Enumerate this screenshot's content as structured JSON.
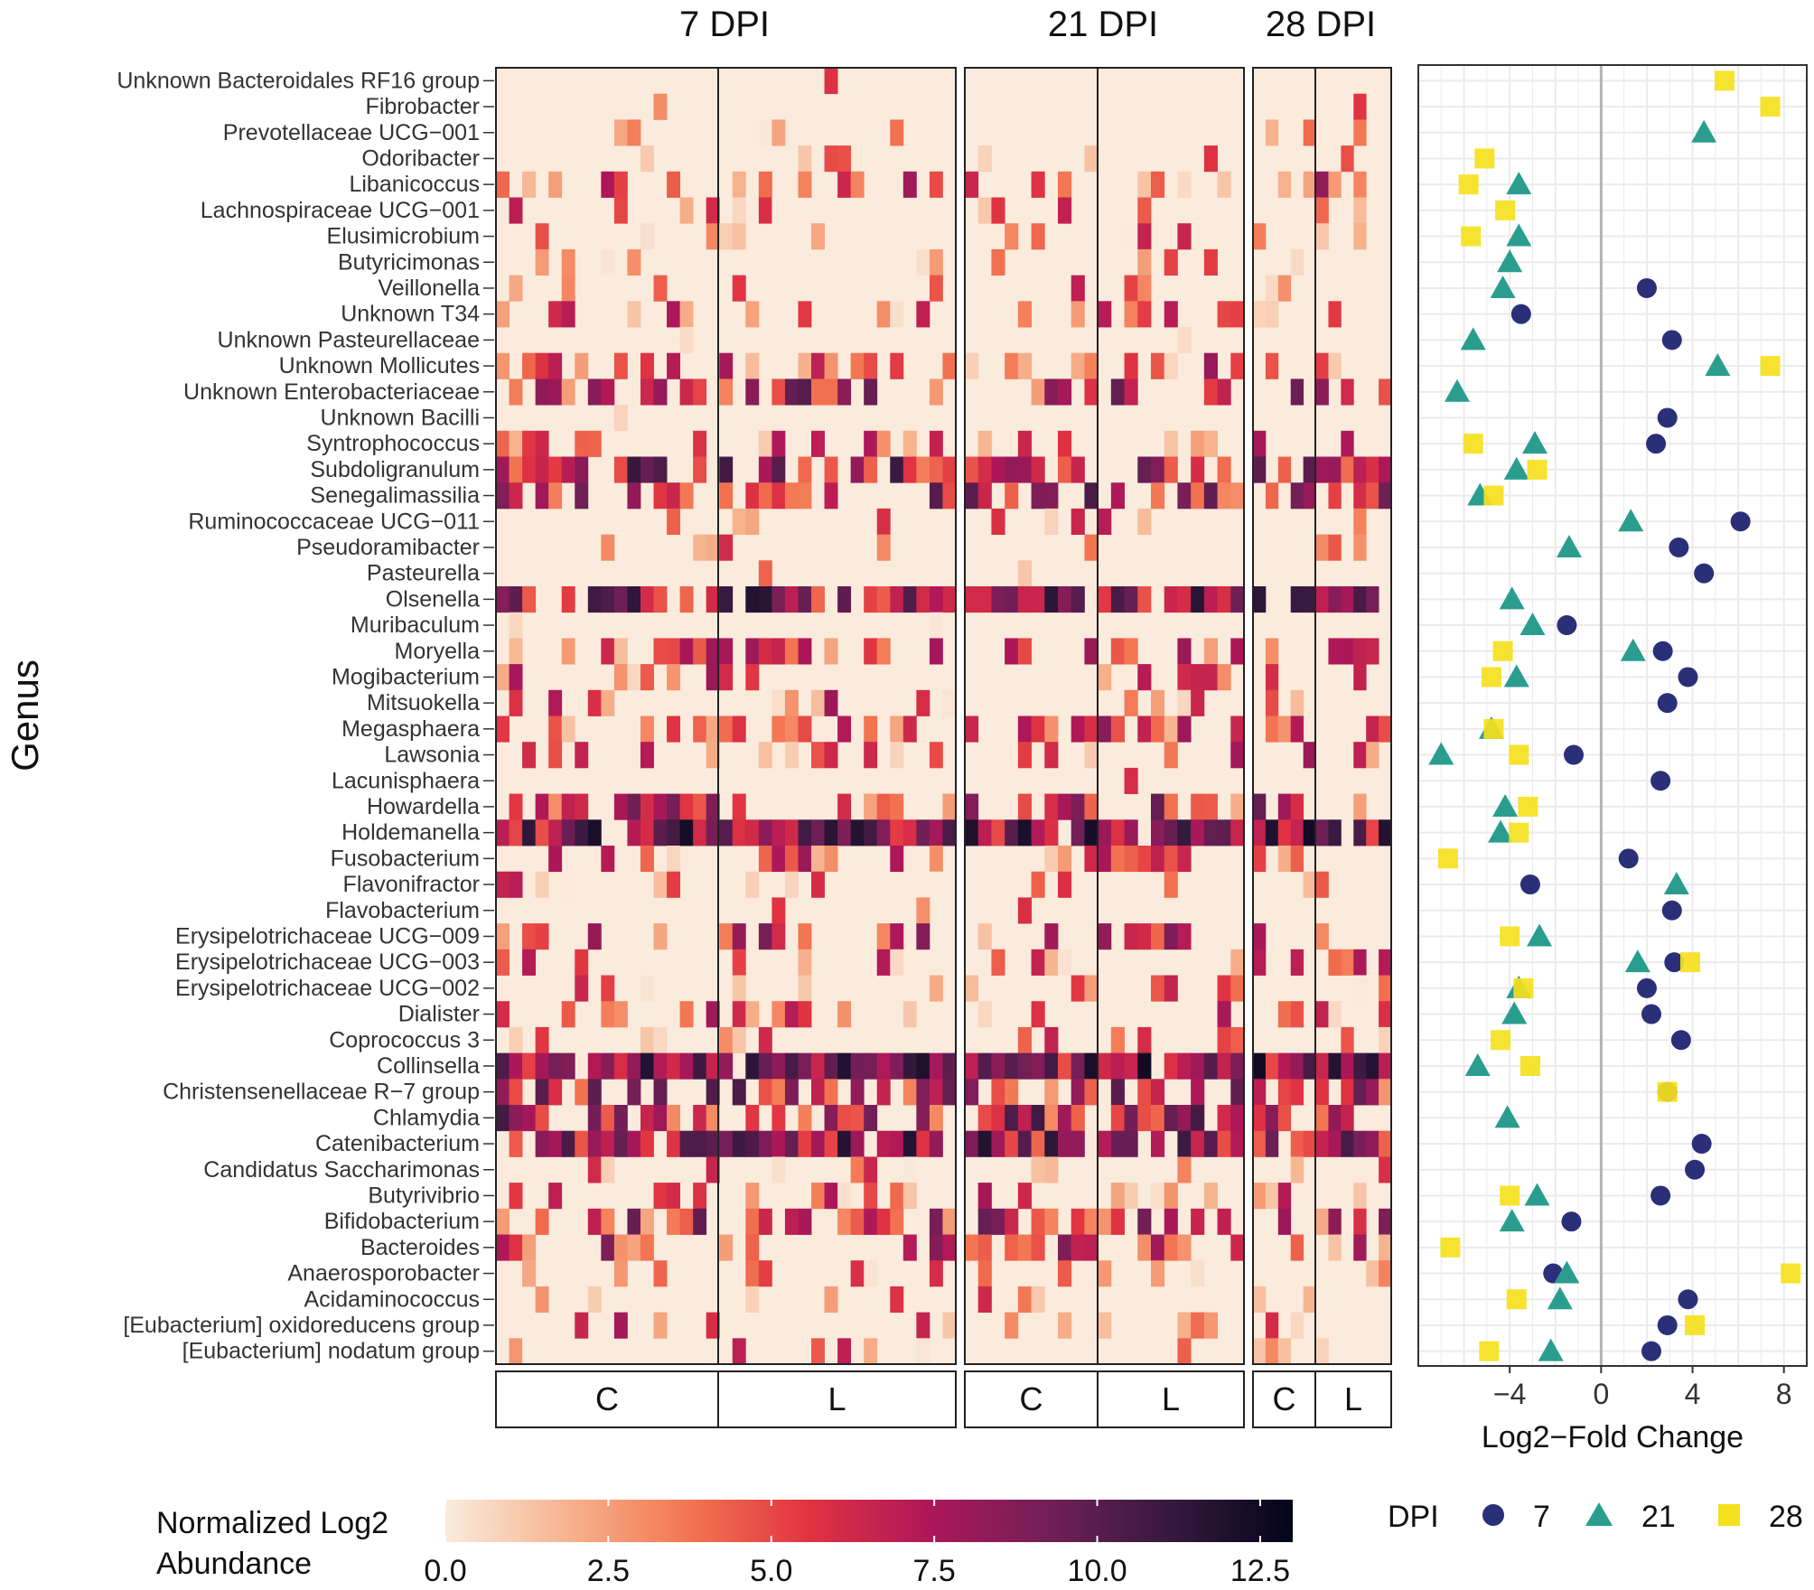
{
  "chart_data": {
    "type": "heatmap",
    "ylabel": "Genus",
    "genera": [
      "Unknown Bacteroidales RF16 group",
      "Fibrobacter",
      "Prevotellaceae UCG−001",
      "Odoribacter",
      "Libanicoccus",
      "Lachnospiraceae UCG−001",
      "Elusimicrobium",
      "Butyricimonas",
      "Veillonella",
      "Unknown T34",
      "Unknown Pasteurellaceae",
      "Unknown Mollicutes",
      "Unknown Enterobacteriaceae",
      "Unknown Bacilli",
      "Syntrophococcus",
      "Subdoligranulum",
      "Senegalimassilia",
      "Ruminococcaceae UCG−011",
      "Pseudoramibacter",
      "Pasteurella",
      "Olsenella",
      "Muribaculum",
      "Moryella",
      "Mogibacterium",
      "Mitsuokella",
      "Megasphaera",
      "Lawsonia",
      "Lacunisphaera",
      "Howardella",
      "Holdemanella",
      "Fusobacterium",
      "Flavonifractor",
      "Flavobacterium",
      "Erysipelotrichaceae UCG−009",
      "Erysipelotrichaceae UCG−003",
      "Erysipelotrichaceae UCG−002",
      "Dialister",
      "Coprococcus 3",
      "Collinsella",
      "Christensenellaceae R−7 group",
      "Chlamydia",
      "Catenibacterium",
      "Candidatus Saccharimonas",
      "Butyrivibrio",
      "Bifidobacterium",
      "Bacteroides",
      "Anaerosporobacter",
      "Acidaminococcus",
      "[Eubacterium] oxidoreducens group",
      "[Eubacterium] nodatum group"
    ],
    "panels": [
      {
        "title": "7 DPI",
        "groups": [
          {
            "label": "C",
            "samples": 17
          },
          {
            "label": "L",
            "samples": 18
          }
        ]
      },
      {
        "title": "21 DPI",
        "groups": [
          {
            "label": "C",
            "samples": 10
          },
          {
            "label": "L",
            "samples": 11
          }
        ]
      },
      {
        "title": "28 DPI",
        "groups": [
          {
            "label": "C",
            "samples": 5
          },
          {
            "label": "L",
            "samples": 6
          }
        ]
      }
    ],
    "row_intensity": [
      0.02,
      0.03,
      0.15,
      0.2,
      0.35,
      0.18,
      0.15,
      0.12,
      0.15,
      0.3,
      0.1,
      0.35,
      0.6,
      0.05,
      0.3,
      0.75,
      0.65,
      0.2,
      0.15,
      0.08,
      0.85,
      0.15,
      0.35,
      0.35,
      0.3,
      0.45,
      0.35,
      0.05,
      0.55,
      0.92,
      0.3,
      0.2,
      0.05,
      0.45,
      0.25,
      0.25,
      0.35,
      0.25,
      0.95,
      0.65,
      0.7,
      0.85,
      0.15,
      0.3,
      0.55,
      0.45,
      0.15,
      0.2,
      0.3,
      0.15
    ],
    "colorbar": {
      "title_line1": "Normalized Log2",
      "title_line2": "Abundance",
      "ticks": [
        "0.0",
        "2.5",
        "5.0",
        "7.5",
        "10.0",
        "12.5"
      ],
      "min": 0,
      "max": 13,
      "colors": [
        "#faebdd",
        "#f6b48f",
        "#f37651",
        "#e13342",
        "#ad1759",
        "#701f57",
        "#35193e",
        "#03051a"
      ]
    },
    "fold_change": {
      "xlabel": "Log2−Fold Change",
      "xlim": [
        -8,
        9
      ],
      "xticks": [
        -4,
        0,
        4,
        8
      ],
      "xtick_labels": [
        "−4",
        "0",
        "4",
        "8"
      ],
      "legend_title": "DPI",
      "series": [
        {
          "name": "7",
          "color": "#2b2f78",
          "points": [
            {
              "genus": "Veillonella",
              "x": 2.0
            },
            {
              "genus": "Unknown T34",
              "x": -3.5
            },
            {
              "genus": "Unknown Pasteurellaceae",
              "x": 3.1
            },
            {
              "genus": "Unknown Bacilli",
              "x": 2.9
            },
            {
              "genus": "Syntrophococcus",
              "x": 2.4
            },
            {
              "genus": "Ruminococcaceae UCG−011",
              "x": 6.1
            },
            {
              "genus": "Pseudoramibacter",
              "x": 3.4
            },
            {
              "genus": "Pasteurella",
              "x": 4.5
            },
            {
              "genus": "Muribaculum",
              "x": -1.5
            },
            {
              "genus": "Moryella",
              "x": 2.7
            },
            {
              "genus": "Mogibacterium",
              "x": 3.8
            },
            {
              "genus": "Mitsuokella",
              "x": 2.9
            },
            {
              "genus": "Lawsonia",
              "x": -1.2
            },
            {
              "genus": "Lacunisphaera",
              "x": 2.6
            },
            {
              "genus": "Fusobacterium",
              "x": 1.2
            },
            {
              "genus": "Flavonifractor",
              "x": -3.1
            },
            {
              "genus": "Flavobacterium",
              "x": 3.1
            },
            {
              "genus": "Erysipelotrichaceae UCG−003",
              "x": 3.2
            },
            {
              "genus": "Erysipelotrichaceae UCG−002",
              "x": 2.0
            },
            {
              "genus": "Dialister",
              "x": 2.2
            },
            {
              "genus": "Coprococcus 3",
              "x": 3.5
            },
            {
              "genus": "Christensenellaceae R−7 group",
              "x": 2.9
            },
            {
              "genus": "Catenibacterium",
              "x": 4.4
            },
            {
              "genus": "Candidatus Saccharimonas",
              "x": 4.1
            },
            {
              "genus": "Butyrivibrio",
              "x": 2.6
            },
            {
              "genus": "Bifidobacterium",
              "x": -1.3
            },
            {
              "genus": "Anaerosporobacter",
              "x": -2.1
            },
            {
              "genus": "Acidaminococcus",
              "x": 3.8
            },
            {
              "genus": "[Eubacterium] oxidoreducens group",
              "x": 2.9
            },
            {
              "genus": "[Eubacterium] nodatum group",
              "x": 2.2
            }
          ]
        },
        {
          "name": "21",
          "color": "#2a9d8f",
          "points": [
            {
              "genus": "Prevotellaceae UCG−001",
              "x": 4.5
            },
            {
              "genus": "Libanicoccus",
              "x": -3.6
            },
            {
              "genus": "Elusimicrobium",
              "x": -3.6
            },
            {
              "genus": "Butyricimonas",
              "x": -4.0
            },
            {
              "genus": "Veillonella",
              "x": -4.3
            },
            {
              "genus": "Unknown Pasteurellaceae",
              "x": -5.6
            },
            {
              "genus": "Unknown Mollicutes",
              "x": 5.1
            },
            {
              "genus": "Unknown Enterobacteriaceae",
              "x": -6.3
            },
            {
              "genus": "Syntrophococcus",
              "x": -2.9
            },
            {
              "genus": "Subdoligranulum",
              "x": -3.7
            },
            {
              "genus": "Senegalimassilia",
              "x": -5.3
            },
            {
              "genus": "Ruminococcaceae UCG−011",
              "x": 1.3
            },
            {
              "genus": "Pseudoramibacter",
              "x": -1.4
            },
            {
              "genus": "Olsenella",
              "x": -3.9
            },
            {
              "genus": "Muribaculum",
              "x": -3.0
            },
            {
              "genus": "Moryella",
              "x": 1.4
            },
            {
              "genus": "Mogibacterium",
              "x": -3.7
            },
            {
              "genus": "Megasphaera",
              "x": -4.8
            },
            {
              "genus": "Lawsonia",
              "x": -7.0
            },
            {
              "genus": "Howardella",
              "x": -4.2
            },
            {
              "genus": "Holdemanella",
              "x": -4.4
            },
            {
              "genus": "Flavonifractor",
              "x": 3.3
            },
            {
              "genus": "Erysipelotrichaceae UCG−009",
              "x": -2.7
            },
            {
              "genus": "Erysipelotrichaceae UCG−003",
              "x": 1.6
            },
            {
              "genus": "Erysipelotrichaceae UCG−002",
              "x": -3.6
            },
            {
              "genus": "Dialister",
              "x": -3.8
            },
            {
              "genus": "Collinsella",
              "x": -5.4
            },
            {
              "genus": "Chlamydia",
              "x": -4.1
            },
            {
              "genus": "Butyrivibrio",
              "x": -2.8
            },
            {
              "genus": "Bifidobacterium",
              "x": -3.9
            },
            {
              "genus": "Anaerosporobacter",
              "x": -1.5
            },
            {
              "genus": "Acidaminococcus",
              "x": -1.8
            },
            {
              "genus": "[Eubacterium] nodatum group",
              "x": -2.2
            }
          ]
        },
        {
          "name": "28",
          "color": "#f5e11e",
          "points": [
            {
              "genus": "Unknown Bacteroidales RF16 group",
              "x": 5.4
            },
            {
              "genus": "Fibrobacter",
              "x": 7.4
            },
            {
              "genus": "Odoribacter",
              "x": -5.1
            },
            {
              "genus": "Libanicoccus",
              "x": -5.8
            },
            {
              "genus": "Lachnospiraceae UCG−001",
              "x": -4.2
            },
            {
              "genus": "Elusimicrobium",
              "x": -5.7
            },
            {
              "genus": "Unknown Mollicutes",
              "x": 7.4
            },
            {
              "genus": "Syntrophococcus",
              "x": -5.6
            },
            {
              "genus": "Subdoligranulum",
              "x": -2.8
            },
            {
              "genus": "Senegalimassilia",
              "x": -4.7
            },
            {
              "genus": "Moryella",
              "x": -4.3
            },
            {
              "genus": "Mogibacterium",
              "x": -4.8
            },
            {
              "genus": "Megasphaera",
              "x": -4.7
            },
            {
              "genus": "Lawsonia",
              "x": -3.6
            },
            {
              "genus": "Howardella",
              "x": -3.2
            },
            {
              "genus": "Holdemanella",
              "x": -3.6
            },
            {
              "genus": "Fusobacterium",
              "x": -6.7
            },
            {
              "genus": "Erysipelotrichaceae UCG−009",
              "x": -4.0
            },
            {
              "genus": "Erysipelotrichaceae UCG−003",
              "x": 3.9
            },
            {
              "genus": "Erysipelotrichaceae UCG−002",
              "x": -3.4
            },
            {
              "genus": "Coprococcus 3",
              "x": -4.4
            },
            {
              "genus": "Collinsella",
              "x": -3.1
            },
            {
              "genus": "Christensenellaceae R−7 group",
              "x": 2.9
            },
            {
              "genus": "Butyrivibrio",
              "x": -4.0
            },
            {
              "genus": "Bacteroides",
              "x": -6.6
            },
            {
              "genus": "Anaerosporobacter",
              "x": 8.3
            },
            {
              "genus": "Acidaminococcus",
              "x": -3.7
            },
            {
              "genus": "[Eubacterium] oxidoreducens group",
              "x": 4.1
            },
            {
              "genus": "[Eubacterium] nodatum group",
              "x": -4.9
            }
          ]
        }
      ]
    }
  }
}
